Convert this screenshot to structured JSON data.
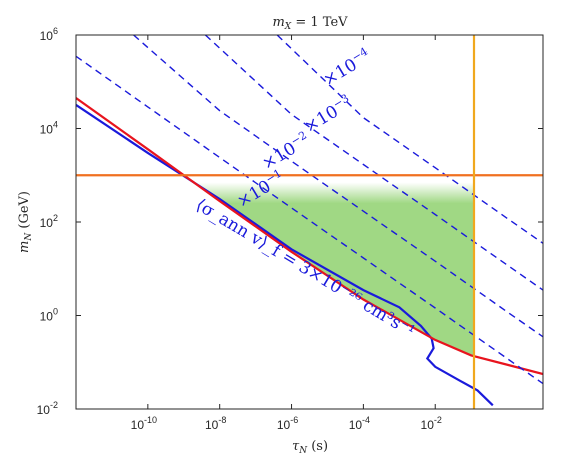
{
  "chart_data": {
    "type": "line",
    "title": "m_X = 1 TeV",
    "xlabel": "τ_N (s)",
    "ylabel": "m_N (GeV)",
    "xscale": "log",
    "yscale": "log",
    "xlim": [
      1e-12,
      10.0
    ],
    "ylim": [
      0.01,
      1000000.0
    ],
    "grid": false,
    "x_ticks": [
      {
        "mantissa": "10",
        "exp": "-10",
        "value": 1e-10
      },
      {
        "mantissa": "10",
        "exp": "-8",
        "value": 1e-08
      },
      {
        "mantissa": "10",
        "exp": "-6",
        "value": 1e-06
      },
      {
        "mantissa": "10",
        "exp": "-4",
        "value": 0.0001
      },
      {
        "mantissa": "10",
        "exp": "-2",
        "value": 0.01
      }
    ],
    "y_ticks": [
      {
        "mantissa": "10",
        "exp": "-2",
        "value": 0.01
      },
      {
        "mantissa": "10",
        "exp": "0",
        "value": 1.0
      },
      {
        "mantissa": "10",
        "exp": "2",
        "value": 100.0
      },
      {
        "mantissa": "10",
        "exp": "4",
        "value": 10000.0
      },
      {
        "mantissa": "10",
        "exp": "6",
        "value": 1000000.0
      }
    ],
    "colors": {
      "blue": "#1a1adb",
      "red": "#e8141e",
      "orange": "#f07020",
      "yellow": "#f0a81e",
      "green": "#a0d884"
    },
    "series": [
      {
        "style": "solid",
        "color": "#1a1adb",
        "points": [
          [
            1e-12,
            32000.0
          ],
          [
            1e-10,
            3000.0
          ],
          [
            1e-08,
            310.0
          ],
          [
            1e-06,
            26.0
          ],
          [
            0.0001,
            3.5
          ],
          [
            0.001,
            1.5
          ],
          [
            0.004,
            0.6
          ],
          [
            0.008,
            0.32
          ],
          [
            0.009,
            0.2
          ],
          [
            0.006,
            0.12
          ],
          [
            0.01,
            0.08
          ],
          [
            0.05,
            0.04
          ],
          [
            0.15,
            0.025
          ],
          [
            0.4,
            0.012
          ]
        ]
      },
      {
        "style": "solid",
        "color": "#e8141e",
        "points": [
          [
            1e-12,
            45000.0
          ],
          [
            1e-10,
            3600.0
          ],
          [
            1e-08,
            280.0
          ],
          [
            1e-06,
            23.0
          ],
          [
            0.0001,
            2.2
          ],
          [
            0.01,
            0.3
          ],
          [
            0.1,
            0.14
          ],
          [
            10.0,
            0.056
          ]
        ]
      },
      {
        "style": "dashed",
        "color": "#1a1adb",
        "points": [
          [
            1e-12,
            350000.0
          ],
          [
            1e-10,
            29000.0
          ],
          [
            1e-08,
            2400.0
          ],
          [
            1e-06,
            200.0
          ],
          [
            0.0001,
            17.0
          ],
          [
            0.01,
            1.45
          ],
          [
            1.0,
            0.12
          ],
          [
            10.0,
            0.035
          ]
        ]
      },
      {
        "style": "dashed",
        "color": "#1a1adb",
        "points": [
          [
            4e-11,
            1000000.0
          ],
          [
            1e-08,
            24000.0
          ],
          [
            1e-06,
            2000.0
          ],
          [
            0.0001,
            170.0
          ],
          [
            0.01,
            14.5
          ],
          [
            1.0,
            1.2
          ],
          [
            10.0,
            0.35
          ]
        ]
      },
      {
        "style": "dashed",
        "color": "#1a1adb",
        "points": [
          [
            4e-09,
            1000000.0
          ],
          [
            1e-06,
            20000.0
          ],
          [
            0.0001,
            1700.0
          ],
          [
            0.01,
            145.0
          ],
          [
            1.0,
            12.0
          ],
          [
            10.0,
            3.5
          ]
        ]
      },
      {
        "style": "dashed",
        "color": "#1a1adb",
        "points": [
          [
            4e-07,
            1000000.0
          ],
          [
            0.0001,
            17000.0
          ],
          [
            0.01,
            1450.0
          ],
          [
            1.0,
            120.0
          ],
          [
            10.0,
            35.0
          ]
        ]
      }
    ],
    "h_line": {
      "y": 1000.0,
      "color": "#f07020"
    },
    "v_line": {
      "x": 0.12,
      "color": "#f0a81e"
    },
    "shaded_region": {
      "color": "#a0d884",
      "x_max": 0.12,
      "y_max": 700.0
    },
    "annotations": [
      {
        "text": "×10",
        "exp": "−4",
        "x": 1e-05,
        "y": 80000.0,
        "angle": -31
      },
      {
        "text": "×10",
        "exp": "−3",
        "x": 3e-06,
        "y": 8000.0,
        "angle": -31
      },
      {
        "text": "×10",
        "exp": "−2",
        "x": 2e-07,
        "y": 1300.0,
        "angle": -31
      },
      {
        "text": "×10",
        "exp": "−1",
        "x": 4e-08,
        "y": 200.0,
        "angle": -31
      }
    ],
    "main_label": {
      "text": "⟨σ_ann v⟩_f = 3×10⁻²⁶ cm³s⁻¹",
      "x": 2e-09,
      "y": 200.0,
      "angle": 31
    }
  }
}
